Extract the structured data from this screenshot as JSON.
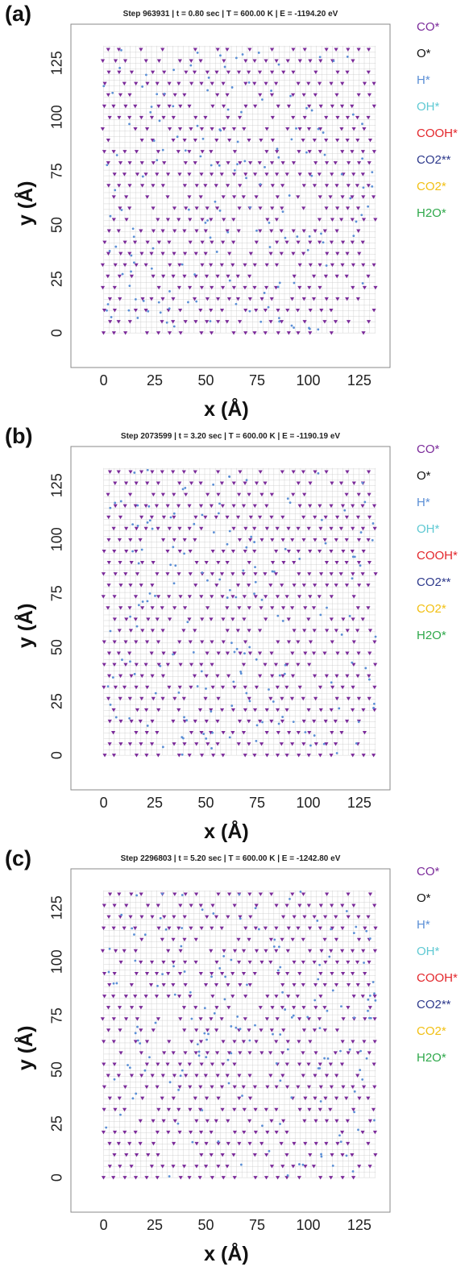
{
  "chart_data": [
    {
      "panel": "(a)",
      "type": "scatter",
      "title": "Step 963931 | t = 0.80 sec | T = 600.00 K | E = -1194.20 eV",
      "xlabel": "x (Å)",
      "ylabel": "y (Å)",
      "xlim": [
        -16,
        140
      ],
      "ylim": [
        -16,
        143
      ],
      "xticks": [
        0,
        25,
        50,
        75,
        100,
        125
      ],
      "yticks": [
        0,
        25,
        50,
        75,
        100,
        125
      ],
      "grid": true,
      "legend_position": "right",
      "series": [
        {
          "name": "CO*",
          "color": "#7b2a9a",
          "marker": "triangle-down"
        },
        {
          "name": "O*",
          "color": "#111111",
          "marker": "dot"
        },
        {
          "name": "H*",
          "color": "#5b8fd6",
          "marker": "dot"
        },
        {
          "name": "OH*",
          "color": "#5fc9d3",
          "marker": "dot"
        },
        {
          "name": "COOH*",
          "color": "#e3262b",
          "marker": "dot"
        },
        {
          "name": "CO2**",
          "color": "#2e3a8c",
          "marker": "dot"
        },
        {
          "name": "CO2*",
          "color": "#f2c014",
          "marker": "dot"
        },
        {
          "name": "H2O*",
          "color": "#2ea84a",
          "marker": "dot"
        }
      ]
    },
    {
      "panel": "(b)",
      "type": "scatter",
      "title": "Step 2073599 | t = 3.20 sec | T = 600.00 K | E = -1190.19 eV",
      "xlabel": "x (Å)",
      "ylabel": "y (Å)",
      "xlim": [
        -16,
        140
      ],
      "ylim": [
        -16,
        143
      ],
      "xticks": [
        0,
        25,
        50,
        75,
        100,
        125
      ],
      "yticks": [
        0,
        25,
        50,
        75,
        100,
        125
      ],
      "grid": true,
      "legend_position": "right",
      "series": [
        {
          "name": "CO*",
          "color": "#7b2a9a",
          "marker": "triangle-down"
        },
        {
          "name": "O*",
          "color": "#111111",
          "marker": "dot"
        },
        {
          "name": "H*",
          "color": "#5b8fd6",
          "marker": "dot"
        },
        {
          "name": "OH*",
          "color": "#5fc9d3",
          "marker": "dot"
        },
        {
          "name": "COOH*",
          "color": "#e3262b",
          "marker": "dot"
        },
        {
          "name": "CO2**",
          "color": "#2e3a8c",
          "marker": "dot"
        },
        {
          "name": "CO2*",
          "color": "#f2c014",
          "marker": "dot"
        },
        {
          "name": "H2O*",
          "color": "#2ea84a",
          "marker": "dot"
        }
      ]
    },
    {
      "panel": "(c)",
      "type": "scatter",
      "title": "Step 2296803 | t = 5.20 sec | T = 600.00 K | E = -1242.80 eV",
      "xlabel": "x (Å)",
      "ylabel": "y (Å)",
      "xlim": [
        -16,
        140
      ],
      "ylim": [
        -16,
        143
      ],
      "xticks": [
        0,
        25,
        50,
        75,
        100,
        125
      ],
      "yticks": [
        0,
        25,
        50,
        75,
        100,
        125
      ],
      "grid": true,
      "legend_position": "right",
      "series": [
        {
          "name": "CO*",
          "color": "#7b2a9a",
          "marker": "triangle-down"
        },
        {
          "name": "O*",
          "color": "#111111",
          "marker": "dot"
        },
        {
          "name": "H*",
          "color": "#5b8fd6",
          "marker": "dot"
        },
        {
          "name": "OH*",
          "color": "#5fc9d3",
          "marker": "dot"
        },
        {
          "name": "COOH*",
          "color": "#e3262b",
          "marker": "dot"
        },
        {
          "name": "CO2**",
          "color": "#2e3a8c",
          "marker": "dot"
        },
        {
          "name": "CO2*",
          "color": "#f2c014",
          "marker": "dot"
        },
        {
          "name": "H2O*",
          "color": "#2ea84a",
          "marker": "dot"
        }
      ]
    }
  ]
}
